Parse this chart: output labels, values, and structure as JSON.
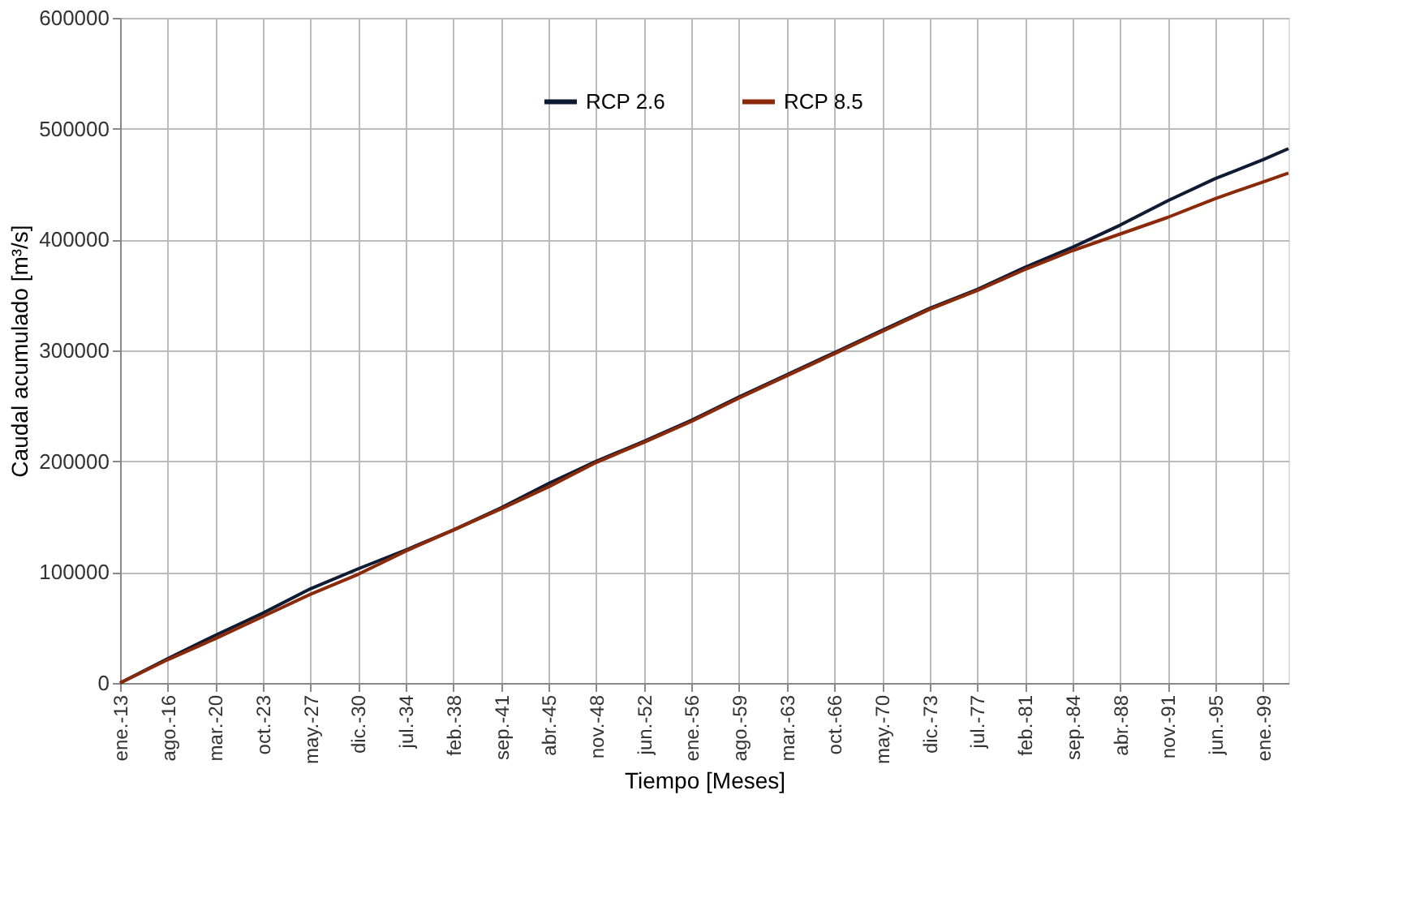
{
  "chart_data": {
    "type": "line",
    "xlabel": "Tiempo [Meses]",
    "ylabel": "Caudal acumulado [m³/s]",
    "xlim": [
      "2013-01",
      "2100-12"
    ],
    "xticks": [
      {
        "value": "2013-01",
        "label": "ene.-13"
      },
      {
        "value": "2016-08",
        "label": "ago.-16"
      },
      {
        "value": "2020-03",
        "label": "mar.-20"
      },
      {
        "value": "2023-10",
        "label": "oct.-23"
      },
      {
        "value": "2027-05",
        "label": "may.-27"
      },
      {
        "value": "2030-12",
        "label": "dic.-30"
      },
      {
        "value": "2034-07",
        "label": "jul.-34"
      },
      {
        "value": "2038-02",
        "label": "feb.-38"
      },
      {
        "value": "2041-09",
        "label": "sep.-41"
      },
      {
        "value": "2045-04",
        "label": "abr.-45"
      },
      {
        "value": "2048-11",
        "label": "nov.-48"
      },
      {
        "value": "2052-06",
        "label": "jun.-52"
      },
      {
        "value": "2056-01",
        "label": "ene.-56"
      },
      {
        "value": "2059-08",
        "label": "ago.-59"
      },
      {
        "value": "2063-03",
        "label": "mar.-63"
      },
      {
        "value": "2066-10",
        "label": "oct.-66"
      },
      {
        "value": "2070-05",
        "label": "may.-70"
      },
      {
        "value": "2073-12",
        "label": "dic.-73"
      },
      {
        "value": "2077-07",
        "label": "jul.-77"
      },
      {
        "value": "2081-02",
        "label": "feb.-81"
      },
      {
        "value": "2084-09",
        "label": "sep.-84"
      },
      {
        "value": "2088-04",
        "label": "abr.-88"
      },
      {
        "value": "2091-11",
        "label": "nov.-91"
      },
      {
        "value": "2095-06",
        "label": "jun.-95"
      },
      {
        "value": "2099-01",
        "label": "ene.-99"
      }
    ],
    "ylim": [
      0,
      600000
    ],
    "yticks": [
      0,
      100000,
      200000,
      300000,
      400000,
      500000,
      600000
    ],
    "grid": true,
    "legend": "top",
    "marker": "none",
    "line_style": "solid",
    "x": [
      "2013-01",
      "2016-08",
      "2020-03",
      "2023-10",
      "2027-05",
      "2030-12",
      "2034-07",
      "2038-02",
      "2041-09",
      "2045-04",
      "2048-11",
      "2052-06",
      "2056-01",
      "2059-08",
      "2063-03",
      "2066-10",
      "2070-05",
      "2073-12",
      "2077-07",
      "2081-02",
      "2084-09",
      "2088-04",
      "2091-11",
      "2095-06",
      "2099-01",
      "2100-12"
    ],
    "series": [
      {
        "name": "RCP 2.6",
        "color": "#0f1a33",
        "values": [
          0,
          22000,
          43000,
          63000,
          85000,
          103000,
          120000,
          138000,
          158000,
          180000,
          200000,
          218000,
          237000,
          258000,
          278000,
          298000,
          318000,
          338000,
          355000,
          375000,
          393000,
          413000,
          435000,
          455000,
          472000,
          482000
        ]
      },
      {
        "name": "RCP 8.5",
        "color": "#8b2a0a",
        "values": [
          0,
          21000,
          40000,
          60000,
          80000,
          98000,
          119000,
          138000,
          157000,
          177000,
          199000,
          217000,
          236000,
          257000,
          277000,
          297000,
          317000,
          337000,
          354000,
          373000,
          390000,
          405000,
          420000,
          437000,
          452000,
          460000
        ]
      }
    ]
  }
}
